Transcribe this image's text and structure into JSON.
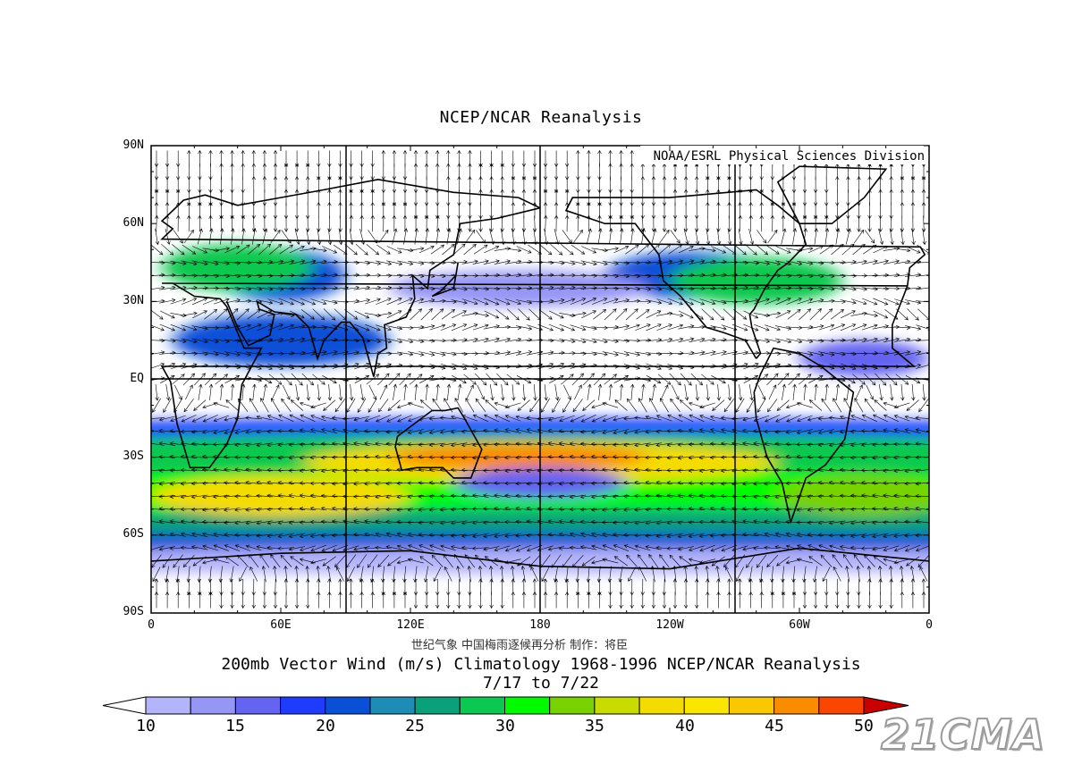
{
  "map": {
    "title": "NCEP/NCAR Reanalysis",
    "credit": "NOAA/ESRL Physical Sciences Division",
    "lat_labels": [
      "90N",
      "60N",
      "30N",
      "EQ",
      "30S",
      "60S",
      "90S"
    ],
    "lon_labels": [
      "0",
      "60E",
      "120E",
      "180",
      "120W",
      "60W",
      "0"
    ],
    "footer_credit": "世纪气象  中国梅雨逐候再分析  制作：将臣",
    "footer_title": "200mb Vector Wind (m/s) Climatology 1968-1996 NCEP/NCAR Reanalysis",
    "footer_dates": "7/17  to 7/22"
  },
  "colorbar": {
    "colors": [
      "#b4b4fa",
      "#9696f5",
      "#6464f0",
      "#1e3cff",
      "#0a50d7",
      "#1e8cb4",
      "#0aa07a",
      "#0ac850",
      "#00fa00",
      "#78d200",
      "#c8dc00",
      "#f5dc00",
      "#fae600",
      "#fac800",
      "#fa8c00",
      "#fa4600",
      "#c80000"
    ],
    "labels": [
      "10",
      "15",
      "20",
      "25",
      "30",
      "35",
      "40",
      "45",
      "50"
    ]
  },
  "bands": [
    {
      "lat": 40,
      "speed": 22
    },
    {
      "lat": 38,
      "speed": 28
    },
    {
      "lat": 15,
      "speed": 20
    },
    {
      "lat": 8,
      "speed": 15
    },
    {
      "lat": -20,
      "speed": 18
    },
    {
      "lat": -30,
      "speed": 38
    },
    {
      "lat": -40,
      "speed": 33
    },
    {
      "lat": -50,
      "speed": 30
    },
    {
      "lat": -60,
      "speed": 22
    }
  ],
  "watermark": "21CMA"
}
